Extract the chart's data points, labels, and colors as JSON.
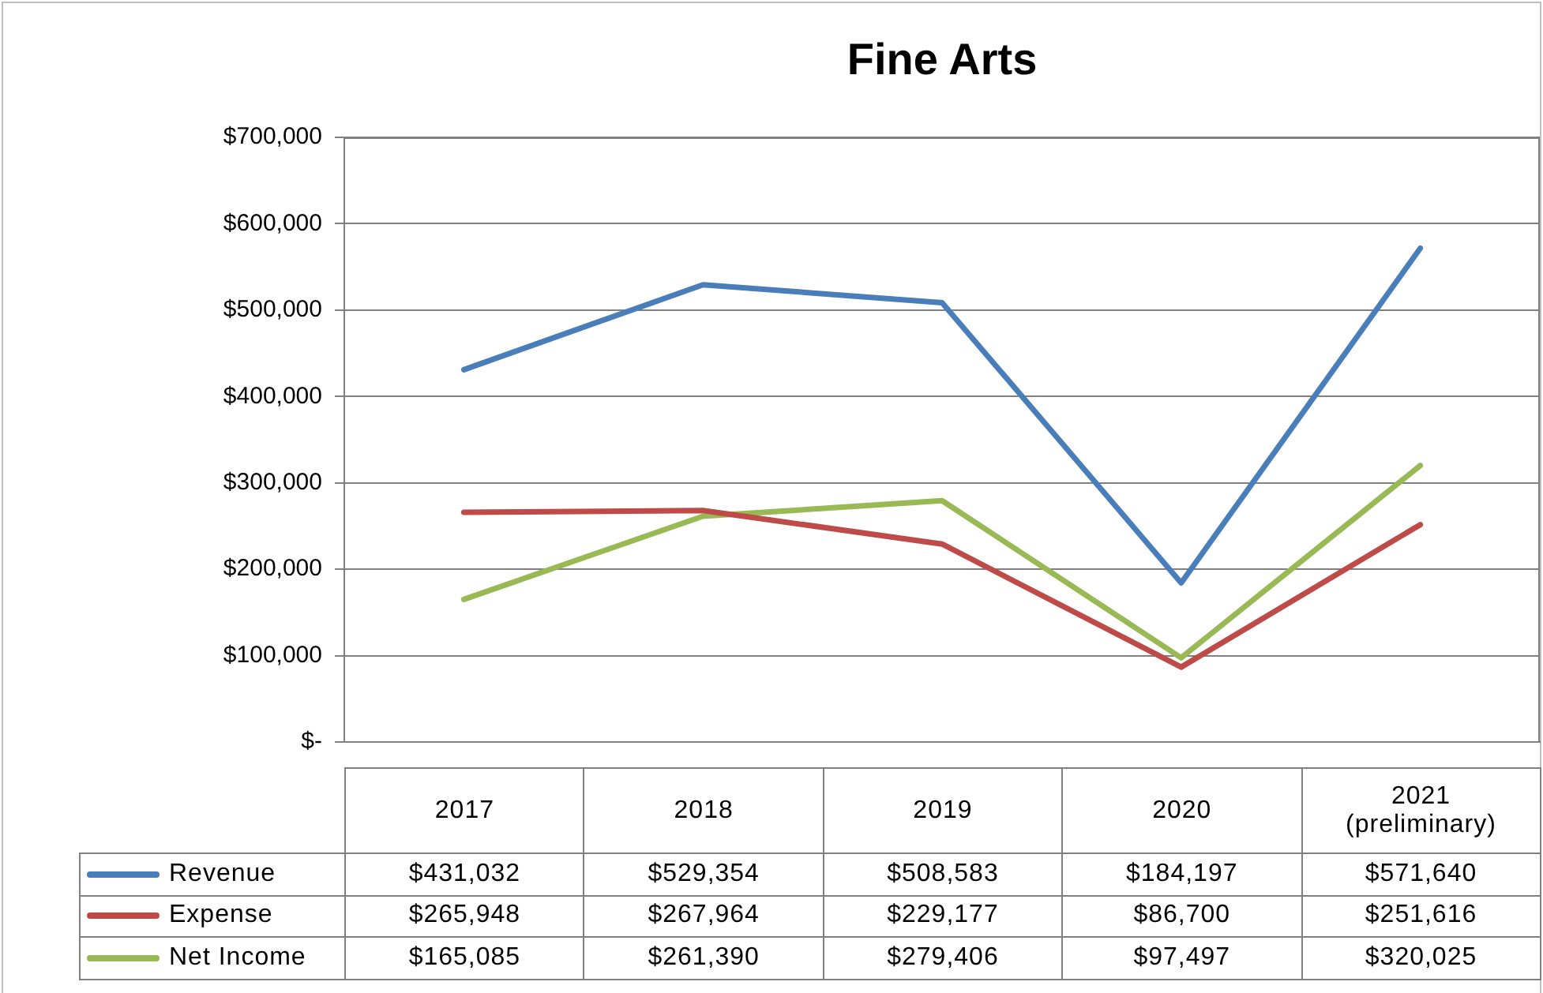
{
  "chart_data": {
    "type": "line",
    "title": "Fine Arts",
    "categories": [
      "2017",
      "2018",
      "2019",
      "2020",
      "2021 (preliminary)"
    ],
    "series": [
      {
        "name": "Revenue",
        "color": "#4a7ebb",
        "values": [
          431032,
          529354,
          508583,
          184197,
          571640
        ],
        "value_labels": [
          "$431,032",
          "$529,354",
          "$508,583",
          "$184,197",
          "$571,640"
        ]
      },
      {
        "name": "Expense",
        "color": "#be4b48",
        "values": [
          265948,
          267964,
          229177,
          86700,
          251616
        ],
        "value_labels": [
          "$265,948",
          "$267,964",
          "$229,177",
          "$86,700",
          "$251,616"
        ]
      },
      {
        "name": "Net Income",
        "color": "#98b954",
        "values": [
          165085,
          261390,
          279406,
          97497,
          320025
        ],
        "value_labels": [
          "$165,085",
          "$261,390",
          "$279,406",
          "$97,497",
          "$320,025"
        ]
      }
    ],
    "ylim": [
      0,
      700000
    ],
    "yticks": [
      {
        "value": 0,
        "label": "$-"
      },
      {
        "value": 100000,
        "label": "$100,000"
      },
      {
        "value": 200000,
        "label": "$200,000"
      },
      {
        "value": 300000,
        "label": "$300,000"
      },
      {
        "value": 400000,
        "label": "$400,000"
      },
      {
        "value": 500000,
        "label": "$500,000"
      },
      {
        "value": 600000,
        "label": "$600,000"
      },
      {
        "value": 700000,
        "label": "$700,000"
      }
    ],
    "grid": "y",
    "legend": "bottom",
    "marker": "none",
    "line_style": "solid"
  }
}
